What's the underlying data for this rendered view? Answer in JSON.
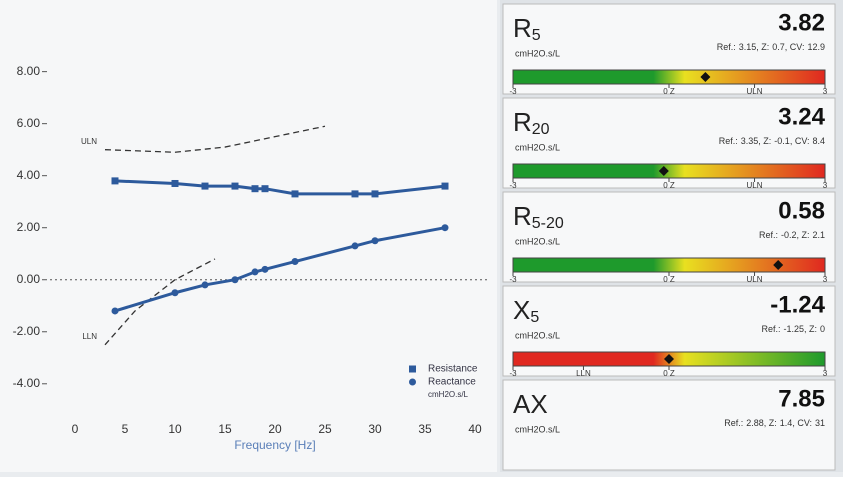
{
  "chart_data": {
    "type": "line",
    "x_label": "Frequency [Hz]",
    "x": [
      4,
      10,
      13,
      16,
      18,
      19,
      22,
      28,
      30,
      37
    ],
    "series": [
      {
        "name": "Resistance",
        "color": "#2d5a9c",
        "marker": "square",
        "values": [
          3.8,
          3.7,
          3.6,
          3.6,
          3.5,
          3.5,
          3.3,
          3.3,
          3.3,
          3.6
        ]
      },
      {
        "name": "Reactance",
        "color": "#2d5a9c",
        "marker": "circle",
        "values": [
          -1.2,
          -0.5,
          -0.2,
          0.0,
          0.3,
          0.4,
          0.7,
          1.3,
          1.5,
          2.0
        ]
      }
    ],
    "legend_unit": "cmH2O.s/L",
    "reference_curves": [
      {
        "label": "ULN",
        "x": [
          3,
          10,
          15,
          20,
          25
        ],
        "values": [
          5.0,
          4.9,
          5.1,
          5.5,
          5.9
        ]
      },
      {
        "label": "LLN",
        "x": [
          3,
          6,
          10,
          14
        ],
        "values": [
          -2.5,
          -1.2,
          0.0,
          0.8
        ]
      }
    ],
    "xlim": [
      0,
      40
    ],
    "xticks": [
      0,
      5,
      10,
      15,
      20,
      25,
      30,
      35,
      40
    ],
    "ylim": [
      -5.2,
      10.6
    ],
    "yticks": [
      {
        "value": -4,
        "label": "-4.00"
      },
      {
        "value": -2,
        "label": "-2.00"
      },
      {
        "value": 0,
        "label": "0.00"
      },
      {
        "value": 2,
        "label": "2.00"
      },
      {
        "value": 4,
        "label": "4.00"
      },
      {
        "value": 6,
        "label": "6.00"
      },
      {
        "value": 8,
        "label": "8.00"
      }
    ],
    "zero_line": true
  },
  "labels": {
    "ref": "Ref.:",
    "z": ", Z:",
    "cv": ", CV:"
  },
  "panels": [
    {
      "name": "R",
      "sub": "5",
      "value": "3.82",
      "unit": "cmH2O.s/L",
      "ref": 3.15,
      "z": 0.7,
      "cv": 12.9,
      "colors": [
        "#1e9a2c",
        "#e8e020",
        "#e02820"
      ],
      "scale": [
        {
          "value": -3,
          "label": "-3"
        },
        {
          "value": 0,
          "label": "0 Z"
        },
        {
          "value": 1.645,
          "label": "ULN"
        },
        {
          "value": 3,
          "label": "3"
        }
      ]
    },
    {
      "name": "R",
      "sub": "20",
      "value": "3.24",
      "unit": "cmH2O.s/L",
      "ref": 3.35,
      "z": -0.1,
      "cv": 8.4,
      "colors": [
        "#1e9a2c",
        "#e8e020",
        "#e02820"
      ],
      "scale": [
        {
          "value": -3,
          "label": "-3"
        },
        {
          "value": 0,
          "label": "0 Z"
        },
        {
          "value": 1.645,
          "label": "ULN"
        },
        {
          "value": 3,
          "label": "3"
        }
      ]
    },
    {
      "name": "R",
      "sub": "5-20",
      "value": "0.58",
      "unit": "cmH2O.s/L",
      "ref": -0.2,
      "z": 2.1,
      "colors": [
        "#1e9a2c",
        "#e8e020",
        "#e02820"
      ],
      "scale": [
        {
          "value": -3,
          "label": "-3"
        },
        {
          "value": 0,
          "label": "0 Z"
        },
        {
          "value": 1.645,
          "label": "ULN"
        },
        {
          "value": 3,
          "label": "3"
        }
      ]
    },
    {
      "name": "X",
      "sub": "5",
      "value": "-1.24",
      "unit": "cmH2O.s/L",
      "ref": -1.25,
      "z": 0.0,
      "colors": [
        "#e02820",
        "#e8e020",
        "#1e9a2c"
      ],
      "scale": [
        {
          "value": -3,
          "label": "-3"
        },
        {
          "value": -1.645,
          "label": "LLN"
        },
        {
          "value": 0,
          "label": "0 Z"
        },
        {
          "value": 3,
          "label": "3"
        }
      ]
    },
    {
      "name": "AX",
      "value": "7.85",
      "unit": "cmH2O.s/L",
      "ref": 2.88,
      "z": 1.4,
      "cv": 31.0
    }
  ]
}
